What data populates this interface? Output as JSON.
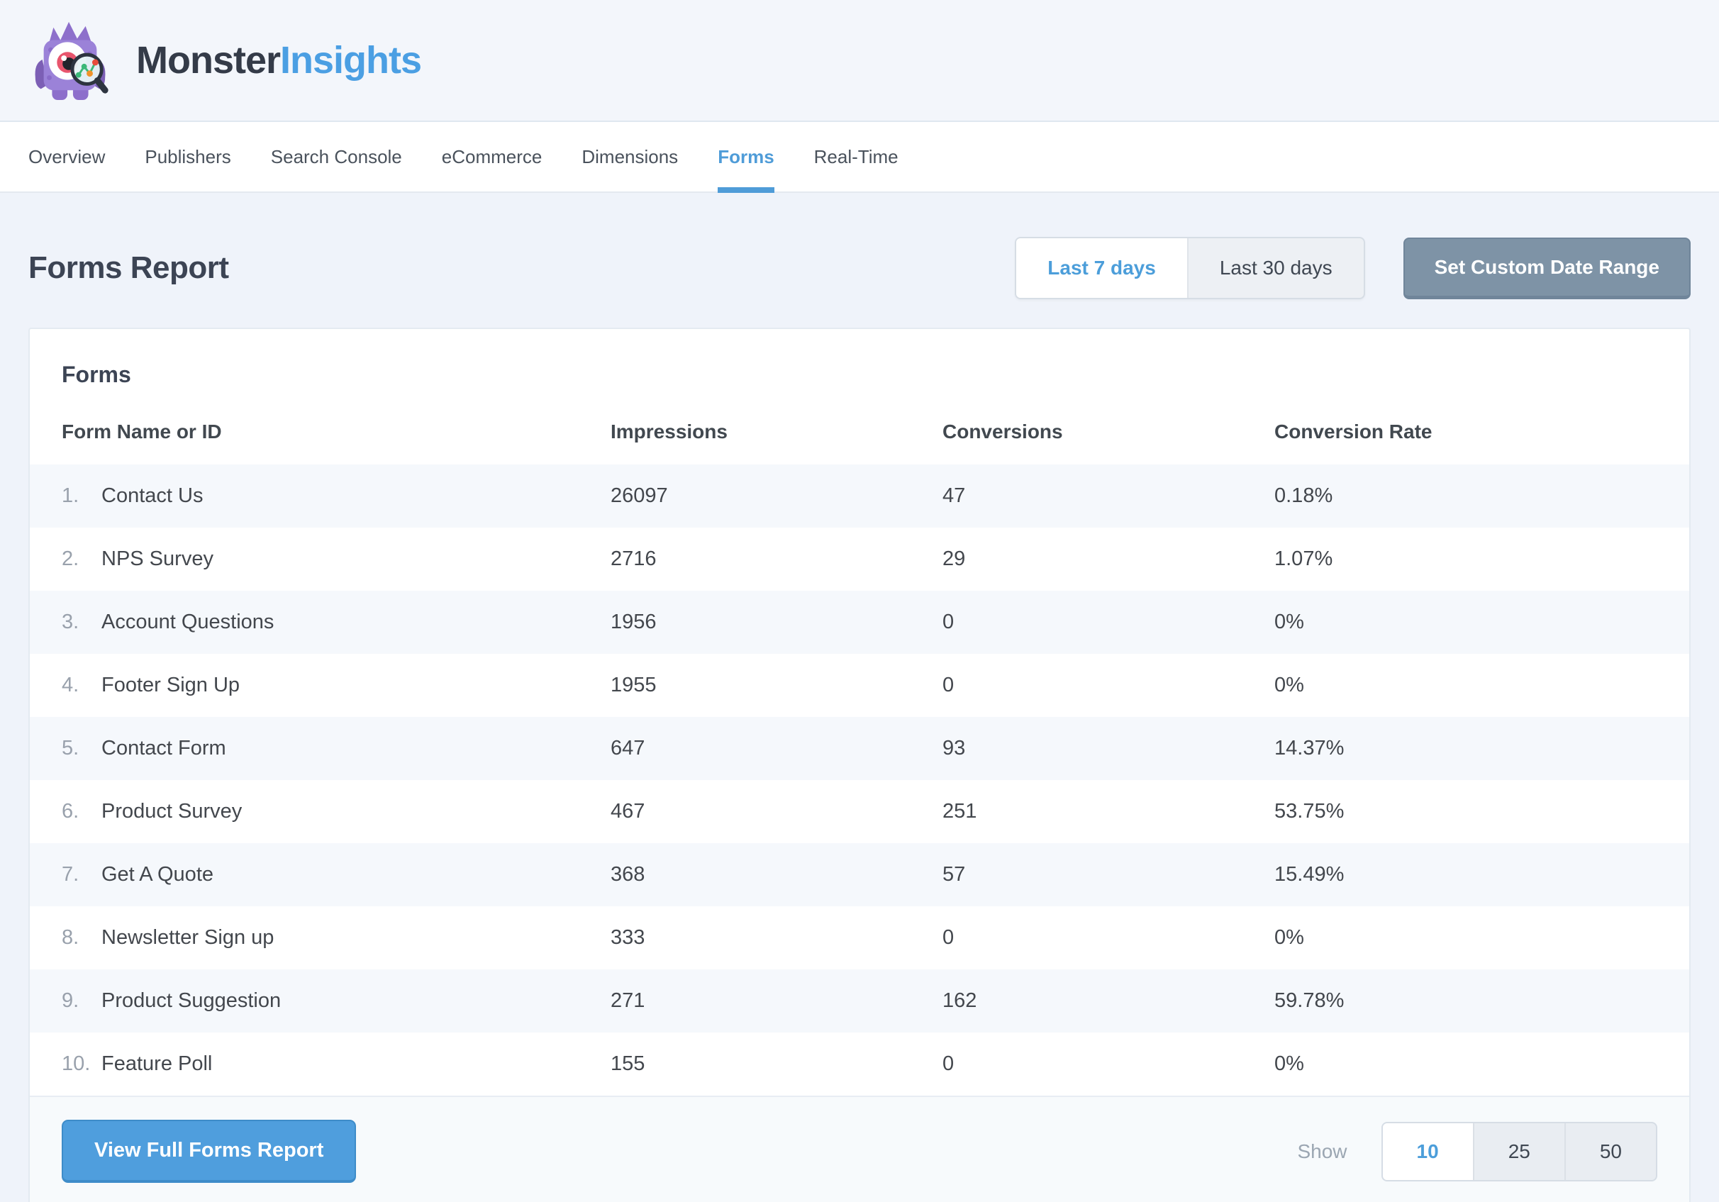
{
  "brand": {
    "name_dark": "Monster",
    "name_accent": "Insights"
  },
  "nav": {
    "items": [
      {
        "label": "Overview",
        "active": false
      },
      {
        "label": "Publishers",
        "active": false
      },
      {
        "label": "Search Console",
        "active": false
      },
      {
        "label": "eCommerce",
        "active": false
      },
      {
        "label": "Dimensions",
        "active": false
      },
      {
        "label": "Forms",
        "active": true
      },
      {
        "label": "Real-Time",
        "active": false
      }
    ]
  },
  "page": {
    "title": "Forms Report"
  },
  "date_range": {
    "options": [
      "Last 7 days",
      "Last 30 days"
    ],
    "selected": "Last 7 days",
    "custom_button": "Set Custom Date Range"
  },
  "card": {
    "title": "Forms",
    "columns": [
      "Form Name or ID",
      "Impressions",
      "Conversions",
      "Conversion Rate"
    ],
    "rows": [
      {
        "index": "1.",
        "name": "Contact Us",
        "impressions": "26097",
        "conversions": "47",
        "rate": "0.18%"
      },
      {
        "index": "2.",
        "name": "NPS Survey",
        "impressions": "2716",
        "conversions": "29",
        "rate": "1.07%"
      },
      {
        "index": "3.",
        "name": "Account Questions",
        "impressions": "1956",
        "conversions": "0",
        "rate": "0%"
      },
      {
        "index": "4.",
        "name": "Footer Sign Up",
        "impressions": "1955",
        "conversions": "0",
        "rate": "0%"
      },
      {
        "index": "5.",
        "name": "Contact Form",
        "impressions": "647",
        "conversions": "93",
        "rate": "14.37%"
      },
      {
        "index": "6.",
        "name": "Product Survey",
        "impressions": "467",
        "conversions": "251",
        "rate": "53.75%"
      },
      {
        "index": "7.",
        "name": "Get A Quote",
        "impressions": "368",
        "conversions": "57",
        "rate": "15.49%"
      },
      {
        "index": "8.",
        "name": "Newsletter Sign up",
        "impressions": "333",
        "conversions": "0",
        "rate": "0%"
      },
      {
        "index": "9.",
        "name": "Product Suggestion",
        "impressions": "271",
        "conversions": "162",
        "rate": "59.78%"
      },
      {
        "index": "10.",
        "name": "Feature Poll",
        "impressions": "155",
        "conversions": "0",
        "rate": "0%"
      }
    ]
  },
  "footer": {
    "view_report_label": "View Full Forms Report",
    "show_label": "Show",
    "page_sizes": [
      "10",
      "25",
      "50"
    ],
    "selected_page_size": "10"
  },
  "colors": {
    "accent_blue": "#4f9cd8",
    "brand_blue": "#4b9fe3",
    "button_blue": "#4f9edd",
    "slate_button": "#7e93a6",
    "title_text": "#3c4454",
    "row_alt_bg": "#f5f8fc",
    "page_bg": "#eff3fa"
  }
}
